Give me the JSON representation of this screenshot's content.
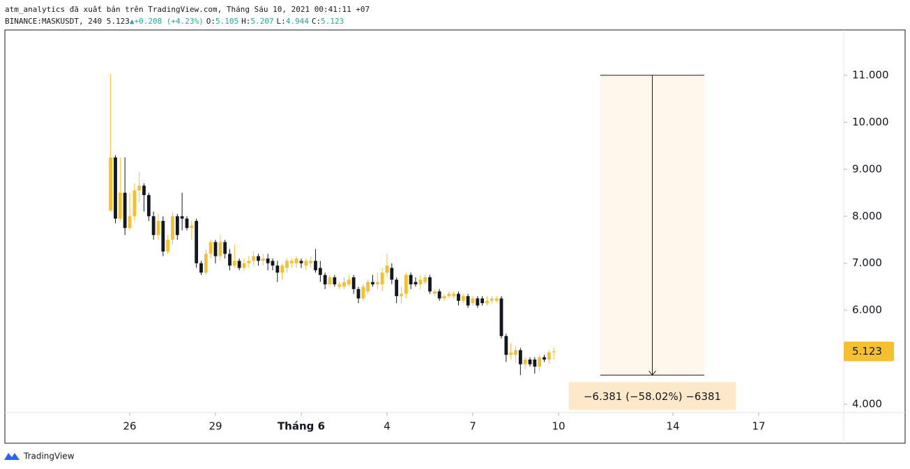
{
  "header": {
    "line1": "atm_analytics đã xuất bản trên TradingView.com, Tháng Sáu 10, 2021 00:41:11 +07",
    "symbol": "BINANCE:MASKUSDT, 240",
    "last": "5.123",
    "arrow": "▲",
    "change": "+0.208 (+4.23%)",
    "ohlc": [
      {
        "label": "O:",
        "value": "5.105"
      },
      {
        "label": "H:",
        "value": "5.207"
      },
      {
        "label": "L:",
        "value": "4.944"
      },
      {
        "label": "C:",
        "value": "5.123"
      }
    ]
  },
  "logo": "TradingView",
  "chart_data": {
    "type": "candlestick",
    "up_color": "#f5bf2f",
    "down_color": "#131722",
    "x": [
      25.333,
      25.5,
      25.667,
      25.833,
      26,
      26.167,
      26.333,
      26.5,
      26.667,
      26.833,
      27,
      27.167,
      27.333,
      27.5,
      27.667,
      27.833,
      28,
      28.167,
      28.333,
      28.5,
      28.667,
      28.833,
      29,
      29.167,
      29.333,
      29.5,
      29.667,
      29.833,
      30,
      30.167,
      30.333,
      30.5,
      30.667,
      30.833,
      31,
      31.167,
      31.333,
      31.5,
      31.667,
      31.833,
      32,
      32.167,
      32.333,
      32.5,
      32.667,
      32.833,
      33,
      33.167,
      33.333,
      33.5,
      33.667,
      33.833,
      34,
      34.167,
      34.333,
      34.5,
      34.667,
      34.833,
      35,
      35.167,
      35.333,
      35.5,
      35.667,
      35.833,
      36,
      36.167,
      36.333,
      36.5,
      36.667,
      36.833,
      37,
      37.167,
      37.333,
      37.5,
      37.667,
      37.833,
      38,
      38.167,
      38.333,
      38.5,
      38.667,
      38.833,
      39,
      39.167,
      39.333,
      39.5,
      39.667,
      39.833,
      40,
      40.167,
      40.333,
      40.5,
      40.667,
      40.833
    ],
    "open": [
      8.12,
      9.25,
      7.95,
      8.5,
      7.75,
      8.0,
      8.55,
      8.65,
      8.45,
      8.0,
      7.6,
      7.9,
      7.25,
      7.5,
      8.0,
      8.0,
      7.95,
      7.75,
      7.9,
      7.0,
      6.8,
      7.2,
      7.45,
      7.15,
      7.45,
      7.2,
      6.95,
      7.05,
      6.9,
      7.0,
      7.05,
      7.15,
      7.05,
      7.1,
      7.05,
      6.95,
      6.8,
      6.9,
      7.0,
      7.0,
      7.05,
      6.95,
      7.0,
      7.05,
      6.9,
      6.75,
      6.55,
      6.7,
      6.5,
      6.5,
      6.55,
      6.7,
      6.45,
      6.25,
      6.4,
      6.6,
      6.55,
      6.55,
      6.8,
      6.9,
      6.65,
      6.3,
      6.35,
      6.75,
      6.6,
      6.55,
      6.6,
      6.7,
      6.35,
      6.4,
      6.25,
      6.3,
      6.3,
      6.35,
      6.2,
      6.3,
      6.15,
      6.25,
      6.25,
      6.15,
      6.2,
      6.2,
      6.25,
      5.45,
      5.05,
      5.05,
      5.15,
      4.85,
      4.95,
      4.95,
      4.8,
      5.0,
      4.95,
      5.105
    ],
    "high": [
      11.03,
      9.3,
      9.25,
      9.25,
      8.5,
      8.7,
      8.95,
      8.7,
      8.5,
      8.1,
      8.05,
      8.0,
      7.6,
      8.1,
      8.05,
      8.5,
      8.0,
      7.9,
      7.95,
      7.05,
      7.3,
      7.5,
      7.5,
      7.6,
      7.5,
      7.3,
      7.4,
      7.1,
      7.1,
      7.15,
      7.25,
      7.2,
      7.2,
      7.2,
      7.1,
      7.05,
      7.0,
      7.1,
      7.1,
      7.15,
      7.1,
      7.1,
      7.15,
      7.3,
      7.05,
      6.8,
      6.75,
      6.75,
      6.6,
      6.7,
      6.75,
      6.75,
      6.5,
      6.55,
      6.65,
      6.75,
      6.8,
      6.9,
      7.2,
      7.0,
      6.7,
      6.5,
      6.8,
      6.8,
      6.7,
      6.75,
      6.75,
      6.75,
      6.45,
      6.45,
      6.35,
      6.4,
      6.4,
      6.4,
      6.35,
      6.35,
      6.3,
      6.3,
      6.3,
      6.3,
      6.3,
      6.3,
      6.3,
      5.5,
      5.3,
      5.25,
      5.2,
      5.0,
      5.0,
      5.0,
      5.05,
      5.05,
      5.15,
      5.207
    ],
    "low": [
      8.1,
      7.85,
      7.9,
      7.6,
      7.7,
      7.9,
      8.3,
      8.1,
      7.9,
      7.5,
      7.5,
      7.15,
      7.2,
      7.4,
      7.5,
      7.7,
      7.7,
      7.5,
      6.9,
      6.75,
      6.75,
      7.1,
      7.0,
      7.05,
      7.1,
      6.85,
      6.9,
      6.85,
      6.85,
      6.9,
      6.95,
      6.95,
      6.95,
      6.85,
      6.85,
      6.6,
      6.65,
      6.8,
      6.9,
      6.9,
      6.9,
      6.85,
      6.9,
      6.8,
      6.6,
      6.45,
      6.5,
      6.5,
      6.45,
      6.45,
      6.5,
      6.35,
      6.15,
      6.2,
      6.35,
      6.5,
      6.45,
      6.4,
      6.7,
      6.55,
      6.15,
      6.15,
      6.25,
      6.45,
      6.5,
      6.45,
      6.55,
      6.35,
      6.3,
      6.2,
      6.2,
      6.25,
      6.25,
      6.1,
      6.15,
      6.05,
      6.1,
      6.05,
      6.1,
      6.1,
      6.15,
      6.15,
      5.4,
      4.9,
      4.95,
      4.9,
      4.619,
      4.75,
      4.8,
      4.65,
      4.7,
      4.9,
      4.85,
      4.944
    ],
    "close": [
      9.25,
      7.95,
      8.5,
      7.75,
      8.0,
      8.55,
      8.65,
      8.45,
      8.0,
      7.6,
      7.9,
      7.25,
      7.5,
      8.0,
      7.6,
      7.95,
      7.75,
      7.8,
      7.0,
      6.8,
      7.2,
      7.45,
      7.15,
      7.45,
      7.2,
      6.95,
      7.05,
      6.9,
      7.0,
      7.05,
      7.15,
      7.05,
      7.1,
      7.0,
      6.95,
      6.8,
      6.95,
      7.05,
      7.05,
      7.1,
      7.0,
      7.05,
      7.05,
      6.85,
      6.75,
      6.55,
      6.7,
      6.55,
      6.55,
      6.6,
      6.65,
      6.45,
      6.25,
      6.5,
      6.6,
      6.55,
      6.6,
      6.8,
      6.95,
      6.65,
      6.3,
      6.35,
      6.75,
      6.55,
      6.55,
      6.65,
      6.7,
      6.4,
      6.4,
      6.25,
      6.3,
      6.35,
      6.35,
      6.2,
      6.3,
      6.1,
      6.25,
      6.1,
      6.15,
      6.2,
      6.25,
      6.25,
      5.45,
      5.05,
      5.1,
      5.15,
      4.85,
      4.95,
      4.85,
      4.8,
      5.0,
      4.95,
      5.1,
      5.123
    ],
    "last_price_label": "5.123",
    "xlim": [
      21.634,
      50.976
    ],
    "ylim": [
      3.822,
      11.964
    ],
    "xticks": [
      26,
      29,
      {
        "value": 32,
        "label": "Tháng 6"
      },
      {
        "value": 35,
        "label": "4"
      },
      {
        "value": 38,
        "label": "7"
      },
      {
        "value": 41,
        "label": "10"
      },
      {
        "value": 45,
        "label": "14"
      },
      {
        "value": 48,
        "label": "17"
      }
    ],
    "yticks": [
      {
        "value": 4,
        "label": "4.000"
      },
      {
        "value": 5,
        "label": "5.000"
      },
      {
        "value": 6,
        "label": "6.000"
      },
      {
        "value": 7,
        "label": "7.000"
      },
      {
        "value": 8,
        "label": "8.000"
      },
      {
        "value": 9,
        "label": "9.000"
      },
      {
        "value": 10,
        "label": "10.000"
      },
      {
        "value": 11,
        "label": "11.000"
      }
    ],
    "measure": {
      "from": 11.0,
      "to": 4.619,
      "x": [
        42.46,
        46.1
      ],
      "label": "−6.381 (−58.02%) −6381"
    }
  }
}
